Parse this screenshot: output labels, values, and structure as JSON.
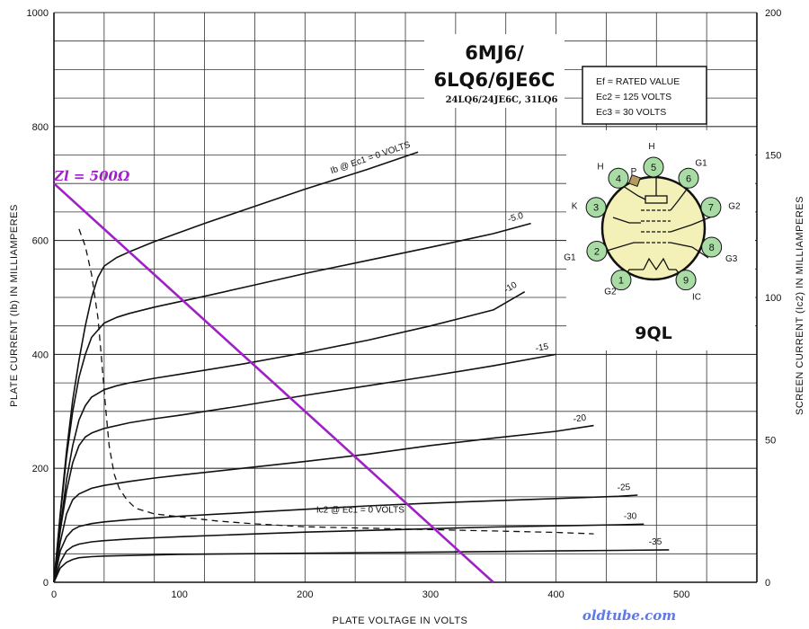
{
  "chart_data": {
    "type": "line",
    "title": "6MJ6/\n6LQ6/6JE6C",
    "subtitle": "24LQ6/24JE6C, 31LQ6",
    "xlabel": "PLATE VOLTAGE IN VOLTS",
    "ylabel": "PLATE CURRENT (Ib) IN MILLIAMPERES",
    "y2label": "SCREEN CURRENT (Ic2) IN MILLIAMPERES",
    "xlim": [
      0,
      560
    ],
    "ylim": [
      0,
      1000
    ],
    "y2lim": [
      0,
      200
    ],
    "xticks": [
      "0",
      "100",
      "200",
      "300",
      "400",
      "500"
    ],
    "yticks": [
      "0",
      "200",
      "400",
      "600",
      "800",
      "1000"
    ],
    "y2ticks": [
      "0",
      "50",
      "100",
      "150",
      "200"
    ],
    "grid": true,
    "conditions": [
      "Ef = RATED VALUE",
      "Ec2 = 125 VOLTS",
      "Ec3 = 30 VOLTS"
    ],
    "series": [
      {
        "name": "Ib @ Ec1 = 0 VOLTS",
        "axis": "left",
        "style": "solid",
        "x": [
          0,
          5,
          10,
          15,
          20,
          25,
          30,
          35,
          40,
          50,
          60,
          80,
          120,
          160,
          200,
          250,
          290
        ],
        "y": [
          0,
          120,
          230,
          320,
          390,
          450,
          500,
          535,
          555,
          570,
          580,
          598,
          630,
          660,
          690,
          725,
          755
        ]
      },
      {
        "name": "-5.0",
        "axis": "left",
        "style": "solid",
        "x": [
          0,
          5,
          10,
          15,
          20,
          25,
          30,
          40,
          50,
          60,
          80,
          120,
          160,
          200,
          250,
          300,
          350,
          380
        ],
        "y": [
          0,
          115,
          220,
          300,
          360,
          400,
          430,
          455,
          465,
          472,
          483,
          502,
          522,
          542,
          565,
          588,
          612,
          630
        ]
      },
      {
        "name": "-10",
        "axis": "left",
        "style": "solid",
        "x": [
          0,
          5,
          10,
          15,
          20,
          25,
          30,
          40,
          50,
          60,
          80,
          100,
          150,
          200,
          250,
          300,
          350,
          375
        ],
        "y": [
          0,
          95,
          180,
          240,
          285,
          310,
          325,
          338,
          345,
          350,
          358,
          365,
          383,
          403,
          425,
          450,
          478,
          510
        ]
      },
      {
        "name": "-15",
        "axis": "left",
        "style": "solid",
        "x": [
          0,
          5,
          10,
          15,
          20,
          25,
          30,
          40,
          60,
          80,
          100,
          150,
          200,
          250,
          300,
          350,
          400
        ],
        "y": [
          0,
          90,
          160,
          210,
          240,
          255,
          262,
          270,
          280,
          287,
          293,
          310,
          328,
          345,
          362,
          380,
          400
        ]
      },
      {
        "name": "-20",
        "axis": "left",
        "style": "solid",
        "x": [
          0,
          5,
          10,
          15,
          20,
          30,
          40,
          60,
          80,
          100,
          150,
          200,
          250,
          300,
          350,
          400,
          430
        ],
        "y": [
          0,
          70,
          120,
          145,
          155,
          165,
          170,
          177,
          183,
          188,
          200,
          212,
          225,
          240,
          253,
          265,
          275
        ]
      },
      {
        "name": "-25",
        "axis": "left",
        "style": "solid",
        "x": [
          0,
          5,
          10,
          15,
          20,
          30,
          40,
          60,
          80,
          100,
          150,
          200,
          250,
          300,
          350,
          400,
          450,
          465
        ],
        "y": [
          0,
          55,
          80,
          92,
          98,
          103,
          106,
          110,
          113,
          116,
          122,
          128,
          134,
          139,
          143,
          147,
          151,
          153
        ]
      },
      {
        "name": "-30",
        "axis": "left",
        "style": "solid",
        "x": [
          0,
          5,
          10,
          15,
          20,
          30,
          40,
          60,
          80,
          100,
          150,
          200,
          250,
          300,
          350,
          400,
          450,
          470
        ],
        "y": [
          0,
          35,
          55,
          63,
          67,
          71,
          73,
          76,
          78,
          80,
          84,
          88,
          91,
          94,
          97,
          99,
          101,
          102
        ]
      },
      {
        "name": "-35",
        "axis": "left",
        "style": "solid",
        "x": [
          0,
          5,
          10,
          15,
          20,
          30,
          40,
          60,
          80,
          100,
          150,
          200,
          250,
          300,
          350,
          400,
          450,
          490
        ],
        "y": [
          0,
          25,
          35,
          40,
          43,
          45,
          46,
          47,
          48,
          49,
          50,
          51,
          52,
          53,
          54,
          55,
          56,
          57
        ]
      },
      {
        "name": "Ic2 @ Ec1 = 0 VOLTS",
        "axis": "right",
        "style": "dashed",
        "x": [
          20,
          25,
          30,
          35,
          38,
          41,
          44,
          48,
          52,
          58,
          65,
          80,
          100,
          130,
          160,
          200,
          250,
          300,
          350,
          400,
          430
        ],
        "y": [
          124,
          118,
          108,
          93,
          78,
          62,
          48,
          38,
          33,
          29,
          26,
          24,
          23,
          21.5,
          20.5,
          19.5,
          19,
          18.5,
          18,
          17.5,
          17
        ]
      },
      {
        "name": "Zl = 500Ω",
        "axis": "left",
        "style": "load",
        "x": [
          0,
          350
        ],
        "y": [
          700,
          0
        ]
      }
    ],
    "colors": {
      "curves": "#111111",
      "grid": "#333333",
      "load_line": "#a020c8",
      "socket_fill": "#f3f0b8",
      "pin_fill": "#a9dca4",
      "watermark": "#5f78e8"
    }
  },
  "socket": {
    "base": "9QL",
    "pins": [
      {
        "num": "1",
        "label": "G2"
      },
      {
        "num": "2",
        "label": "G1"
      },
      {
        "num": "3",
        "label": "K"
      },
      {
        "num": "4",
        "label": "H"
      },
      {
        "num": "5",
        "label": "H"
      },
      {
        "num": "6",
        "label": "G1"
      },
      {
        "num": "7",
        "label": "G2"
      },
      {
        "num": "8",
        "label": "G3"
      },
      {
        "num": "9",
        "label": "IC"
      }
    ],
    "cap_label": "P"
  },
  "annotation": {
    "load_line": "Zl = 500Ω"
  },
  "watermark": "oldtube.com"
}
